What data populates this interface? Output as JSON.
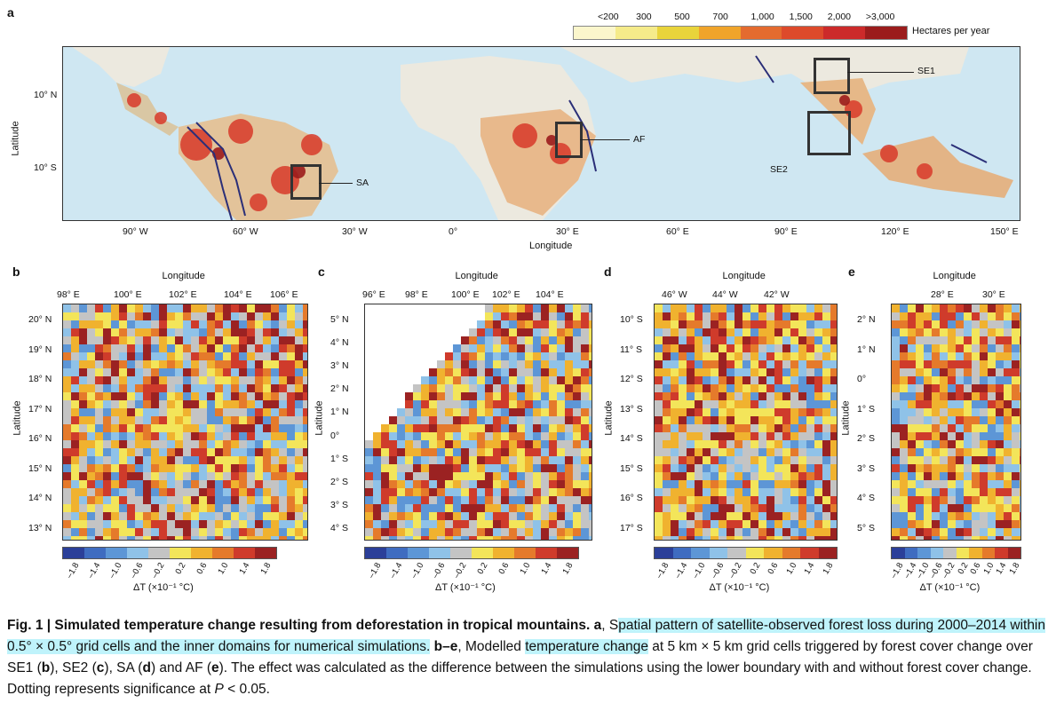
{
  "panel_a": {
    "letter": "a",
    "legend_ticks": [
      "<200",
      "300",
      "500",
      "700",
      "1,000",
      "1,500",
      "2,000",
      ">3,000"
    ],
    "legend_unit": "Hectares per year",
    "legend_colors": [
      "#fbf6cc",
      "#f5eb8a",
      "#e9d43b",
      "#f0a42a",
      "#e46b2f",
      "#dd4a2b",
      "#cc2a2a",
      "#9b1c1c"
    ],
    "lat_ticks": [
      "10° N",
      "10° S"
    ],
    "lon_ticks": [
      "90° W",
      "60° W",
      "30° W",
      "0°",
      "30° E",
      "60° E",
      "90° E",
      "120° E",
      "150° E"
    ],
    "xlabel": "Longitude",
    "ylabel": "Latitude",
    "callouts": [
      "SE1",
      "AF",
      "SE2",
      "SA"
    ]
  },
  "panel_b": {
    "letter": "b",
    "top_title": "Longitude",
    "lon_ticks": [
      "98° E",
      "100° E",
      "102° E",
      "104° E",
      "106° E"
    ],
    "lat_ticks": [
      "20° N",
      "19° N",
      "18° N",
      "17° N",
      "16° N",
      "15° N",
      "14° N",
      "13° N"
    ],
    "ylabel": "Latitude"
  },
  "panel_c": {
    "letter": "c",
    "top_title": "Longitude",
    "lon_ticks": [
      "96° E",
      "98° E",
      "100° E",
      "102° E",
      "104° E"
    ],
    "lat_ticks": [
      "5° N",
      "4° N",
      "3° N",
      "2° N",
      "1° N",
      "0°",
      "1° S",
      "2° S",
      "3° S",
      "4° S"
    ],
    "ylabel": "Latitude"
  },
  "panel_d": {
    "letter": "d",
    "top_title": "Longitude",
    "lon_ticks": [
      "46° W",
      "44° W",
      "42° W"
    ],
    "lat_ticks": [
      "10° S",
      "11° S",
      "12° S",
      "13° S",
      "14° S",
      "15° S",
      "16° S",
      "17° S"
    ],
    "ylabel": "Latitude"
  },
  "panel_e": {
    "letter": "e",
    "top_title": "Longitude",
    "lon_ticks": [
      "28° E",
      "30° E"
    ],
    "lat_ticks": [
      "2° N",
      "1° N",
      "0°",
      "1° S",
      "2° S",
      "3° S",
      "4° S",
      "5° S"
    ],
    "ylabel": "Latitude"
  },
  "colorbar": {
    "ticks": [
      "–1.8",
      "–1.4",
      "–1.0",
      "–0.6",
      "–0.2",
      "0.2",
      "0.6",
      "1.0",
      "1.4",
      "1.8"
    ],
    "label": "ΔT (×10⁻¹ °C)",
    "colors": [
      "#2b3f99",
      "#3f6cc0",
      "#5d96d6",
      "#8fc2e8",
      "#c4c4c4",
      "#f3e55a",
      "#f0b22f",
      "#e57a2b",
      "#cf3b2b",
      "#9b2222"
    ]
  },
  "caption": {
    "lead": "Fig. 1 | Simulated temperature change resulting from deforestation in tropical mountains.",
    "a_label": "a",
    "text1": ", S",
    "hl1": "patial pattern of satellite-observed forest loss during 2000–2014 within 0.5° × 0.5° grid cells and the inner domains for numerical simulations.",
    "be_label": "b",
    "dash": "–",
    "e_label": "e",
    "text2": ", Modelled ",
    "hl2": "temperature change",
    "text3": " at 5 km × 5 km grid cells triggered by forest cover change over SE1 (",
    "b": "b",
    "text4": "), SE2 (",
    "c": "c",
    "text5": "), SA (",
    "d": "d",
    "text6": ") and AF (",
    "e": "e",
    "text7": "). The effect was calculated as the difference between the simulations using the lower boundary with and without forest cover change. Dotting represents significance at ",
    "p": "P",
    "text8": " < 0.05."
  }
}
